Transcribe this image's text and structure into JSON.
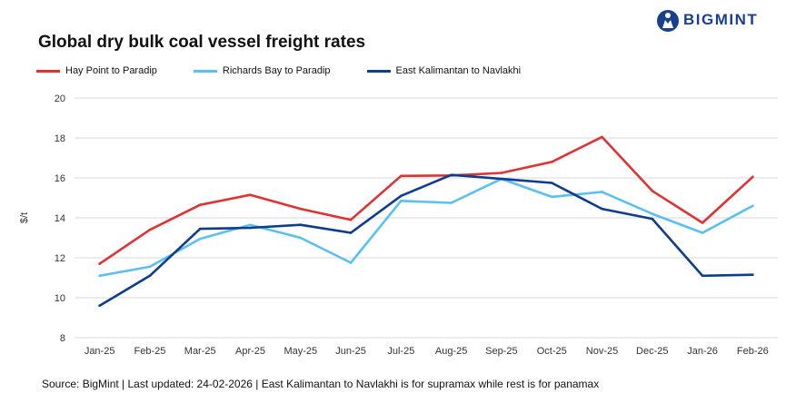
{
  "brand": {
    "name": "BIGMINT",
    "color": "#1b3f8f"
  },
  "title": "Global dry bulk coal vessel freight rates",
  "footer": "Source: BigMint | Last updated: 24-02-2026 | East Kalimantan to Navlakhi is for supramax while rest is for panamax",
  "chart_data": {
    "type": "line",
    "title": "Global dry bulk coal vessel freight rates",
    "xlabel": "",
    "ylabel": "$/t",
    "ylim": [
      8,
      20
    ],
    "yticks": [
      8,
      10,
      12,
      14,
      16,
      18,
      20
    ],
    "grid": true,
    "legend_position": "top-left",
    "categories": [
      "Jan-25",
      "Feb-25",
      "Mar-25",
      "Apr-25",
      "May-25",
      "Jun-25",
      "Jul-25",
      "Aug-25",
      "Sep-25",
      "Oct-25",
      "Nov-25",
      "Dec-25",
      "Jan-26",
      "Feb-26"
    ],
    "series": [
      {
        "name": "Hay Point to Paradip",
        "color": "#e03232",
        "values": [
          11.7,
          13.4,
          14.65,
          15.15,
          14.45,
          13.9,
          16.1,
          16.12,
          16.25,
          16.8,
          18.05,
          15.35,
          13.75,
          16.05
        ]
      },
      {
        "name": "Richards Bay to Paradip",
        "color": "#5bc0f0",
        "values": [
          11.1,
          11.55,
          12.95,
          13.65,
          13.0,
          11.75,
          14.85,
          14.75,
          15.95,
          15.05,
          15.3,
          14.2,
          13.25,
          14.6
        ]
      },
      {
        "name": "East Kalimantan to Navlakhi",
        "color": "#0d3d8c",
        "values": [
          9.6,
          11.1,
          13.45,
          13.5,
          13.65,
          13.25,
          15.1,
          16.15,
          15.95,
          15.75,
          14.45,
          13.95,
          11.1,
          11.15
        ]
      }
    ]
  }
}
